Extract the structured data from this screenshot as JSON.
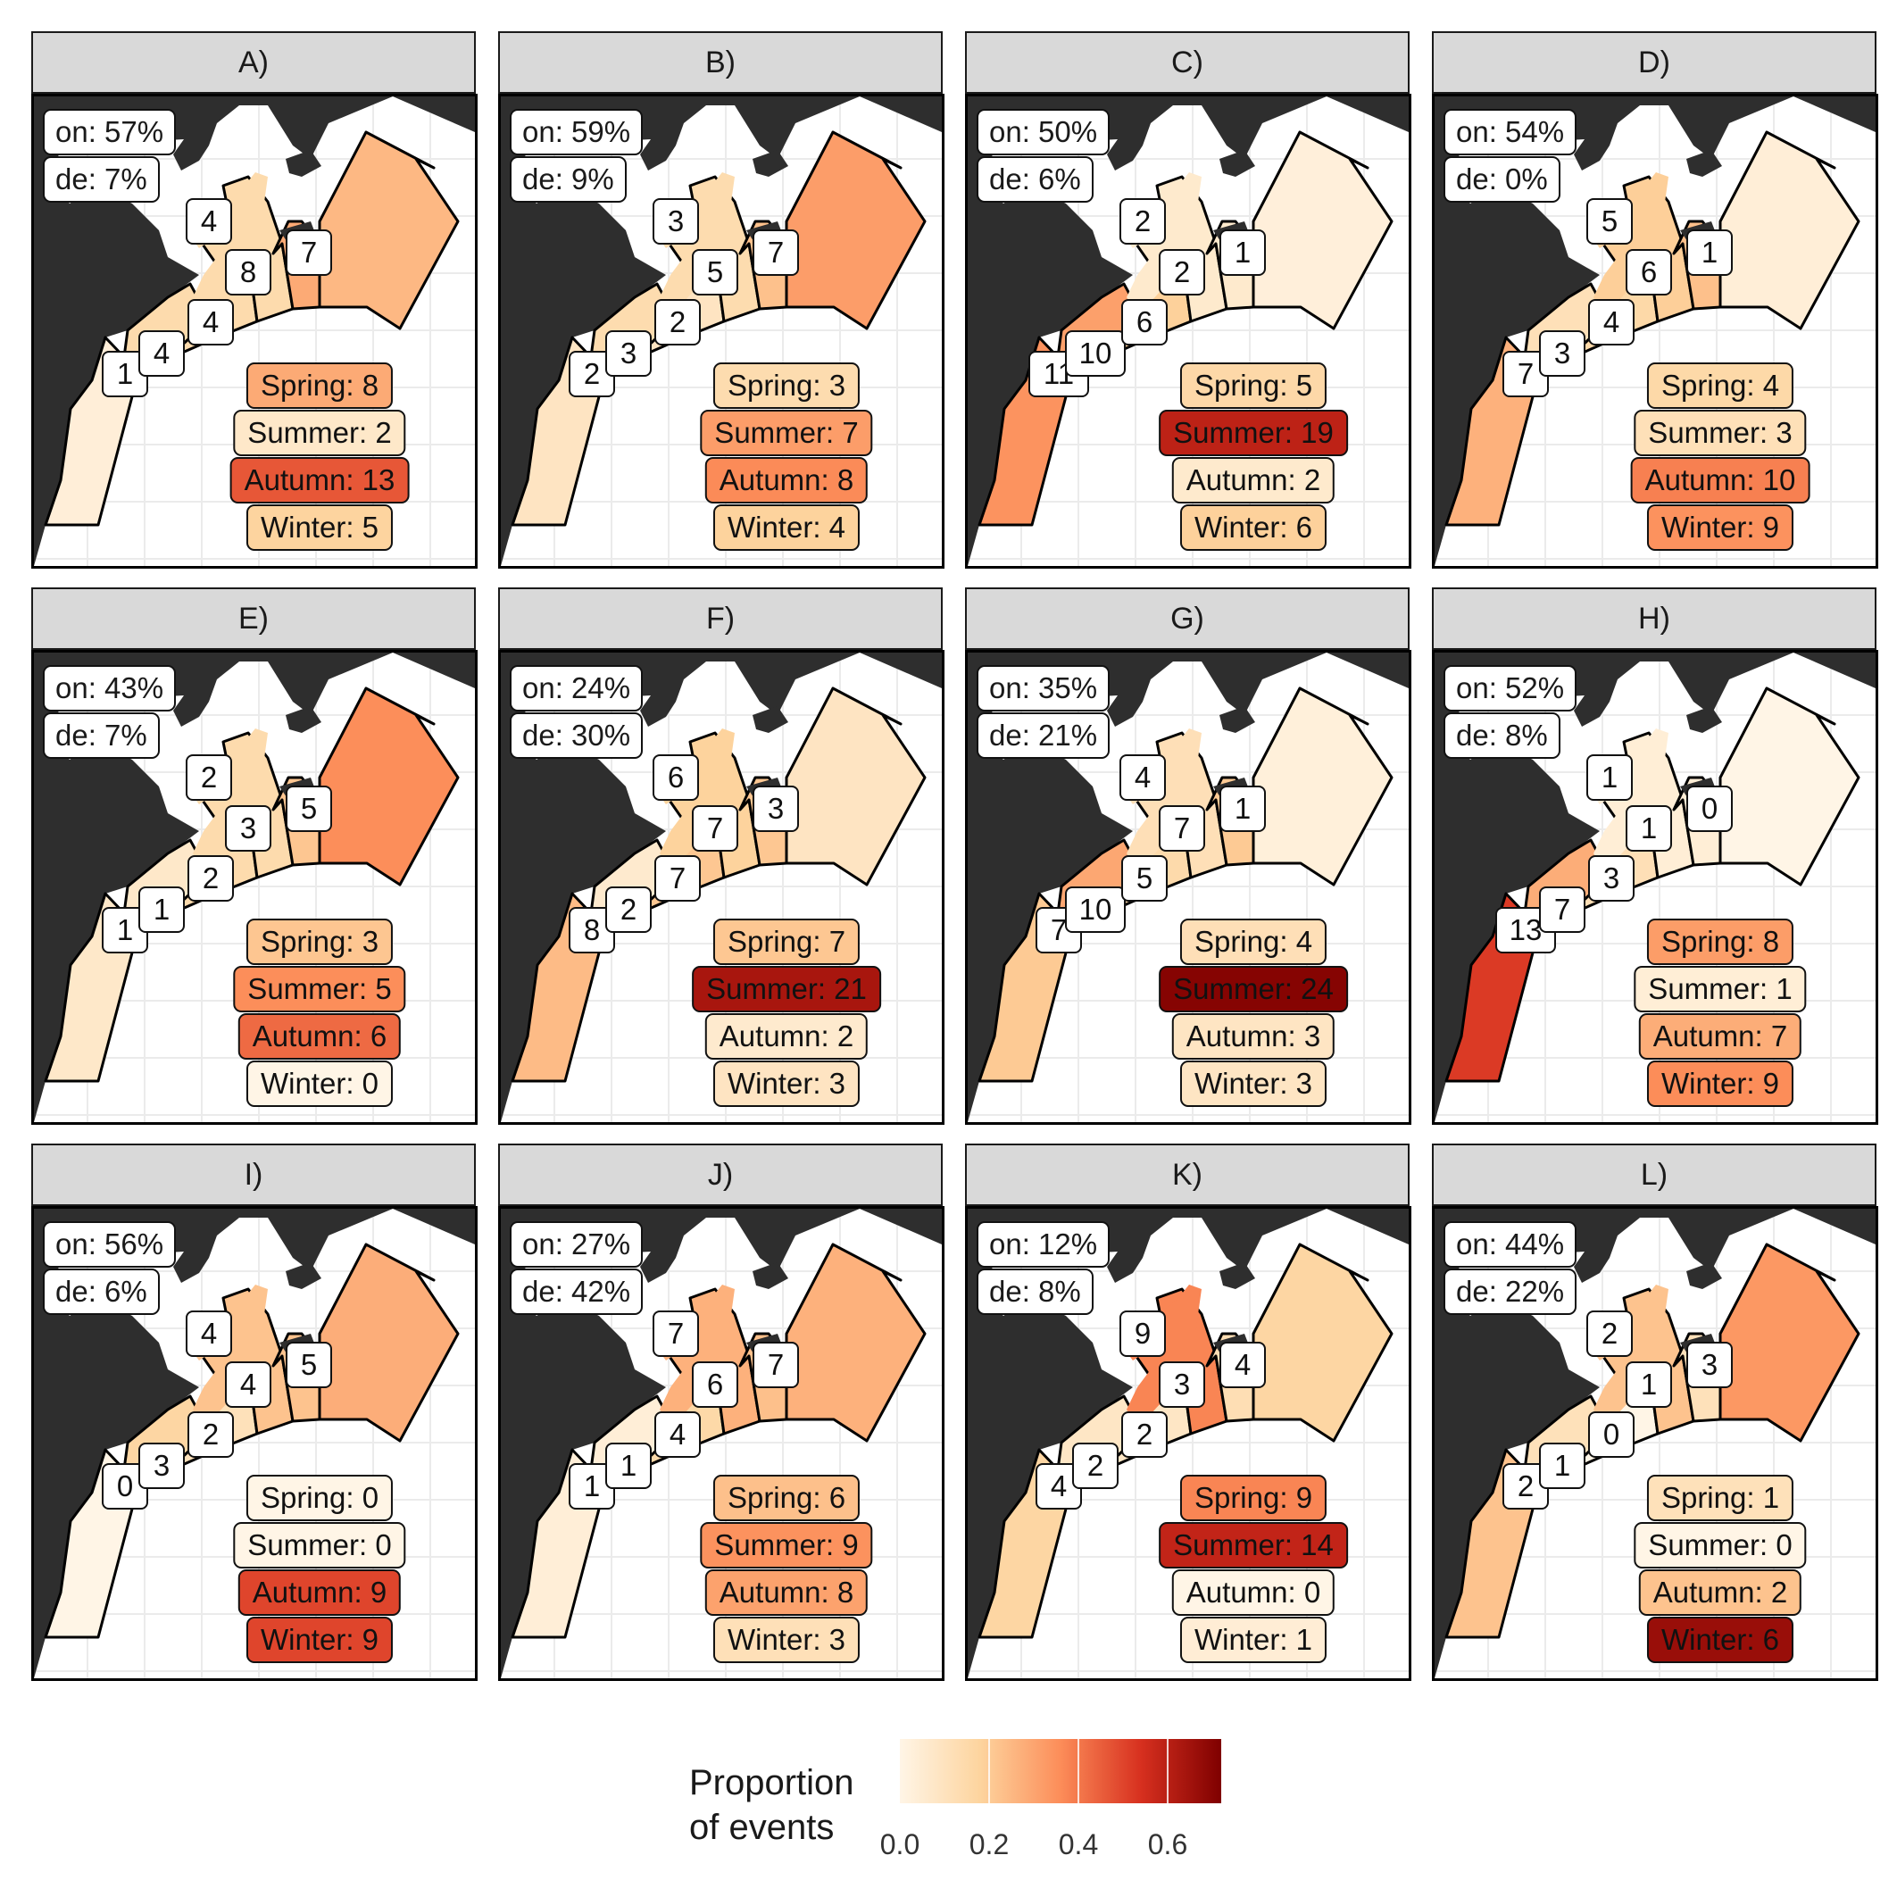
{
  "legend": {
    "title_line1": "Proportion",
    "title_line2": "of events",
    "ticks": [
      "0.0",
      "0.2",
      "0.4",
      "0.6"
    ],
    "tick_values": [
      0.0,
      0.2,
      0.4,
      0.6
    ],
    "max": 0.72,
    "colors": [
      "#fff5e6",
      "#fdd49e",
      "#fc8d59",
      "#d7301f",
      "#7f0000"
    ]
  },
  "map_colors": {
    "land": "#2e2e2e",
    "ocean": "#ffffff",
    "grid": "#ebebeb",
    "border": "#000000"
  },
  "season_names": [
    "Spring",
    "Summer",
    "Autumn",
    "Winter"
  ],
  "panels": [
    {
      "title": "A)",
      "on": "on: 57%",
      "de": "de: 7%",
      "regions": [
        1,
        4,
        4,
        4,
        8,
        7
      ],
      "seasons": [
        8,
        2,
        13,
        5
      ]
    },
    {
      "title": "B)",
      "on": "on: 59%",
      "de": "de: 9%",
      "regions": [
        2,
        3,
        2,
        3,
        5,
        7
      ],
      "seasons": [
        3,
        7,
        8,
        4
      ]
    },
    {
      "title": "C)",
      "on": "on: 50%",
      "de": "de: 6%",
      "regions": [
        11,
        10,
        6,
        2,
        2,
        1
      ],
      "seasons": [
        5,
        19,
        2,
        6
      ]
    },
    {
      "title": "D)",
      "on": "on: 54%",
      "de": "de: 0%",
      "regions": [
        7,
        3,
        4,
        5,
        6,
        1
      ],
      "seasons": [
        4,
        3,
        10,
        9
      ]
    },
    {
      "title": "E)",
      "on": "on: 43%",
      "de": "de: 7%",
      "regions": [
        1,
        1,
        2,
        2,
        3,
        5
      ],
      "seasons": [
        3,
        5,
        6,
        0
      ]
    },
    {
      "title": "F)",
      "on": "on: 24%",
      "de": "de: 30%",
      "regions": [
        8,
        2,
        7,
        6,
        7,
        3
      ],
      "seasons": [
        7,
        21,
        2,
        3
      ]
    },
    {
      "title": "G)",
      "on": "on: 35%",
      "de": "de: 21%",
      "regions": [
        7,
        10,
        5,
        4,
        7,
        1
      ],
      "seasons": [
        4,
        24,
        3,
        3
      ]
    },
    {
      "title": "H)",
      "on": "on: 52%",
      "de": "de: 8%",
      "regions": [
        13,
        7,
        3,
        1,
        1,
        0
      ],
      "seasons": [
        8,
        1,
        7,
        9
      ]
    },
    {
      "title": "I)",
      "on": "on: 56%",
      "de": "de: 6%",
      "regions": [
        0,
        3,
        2,
        4,
        4,
        5
      ],
      "seasons": [
        0,
        0,
        9,
        9
      ]
    },
    {
      "title": "J)",
      "on": "on: 27%",
      "de": "de: 42%",
      "regions": [
        1,
        1,
        4,
        7,
        6,
        7
      ],
      "seasons": [
        6,
        9,
        8,
        3
      ]
    },
    {
      "title": "K)",
      "on": "on: 12%",
      "de": "de: 8%",
      "regions": [
        4,
        2,
        2,
        9,
        3,
        4
      ],
      "seasons": [
        9,
        14,
        0,
        1
      ]
    },
    {
      "title": "L)",
      "on": "on: 44%",
      "de": "de: 22%",
      "regions": [
        2,
        1,
        0,
        2,
        1,
        3
      ],
      "seasons": [
        1,
        0,
        2,
        6
      ]
    }
  ]
}
